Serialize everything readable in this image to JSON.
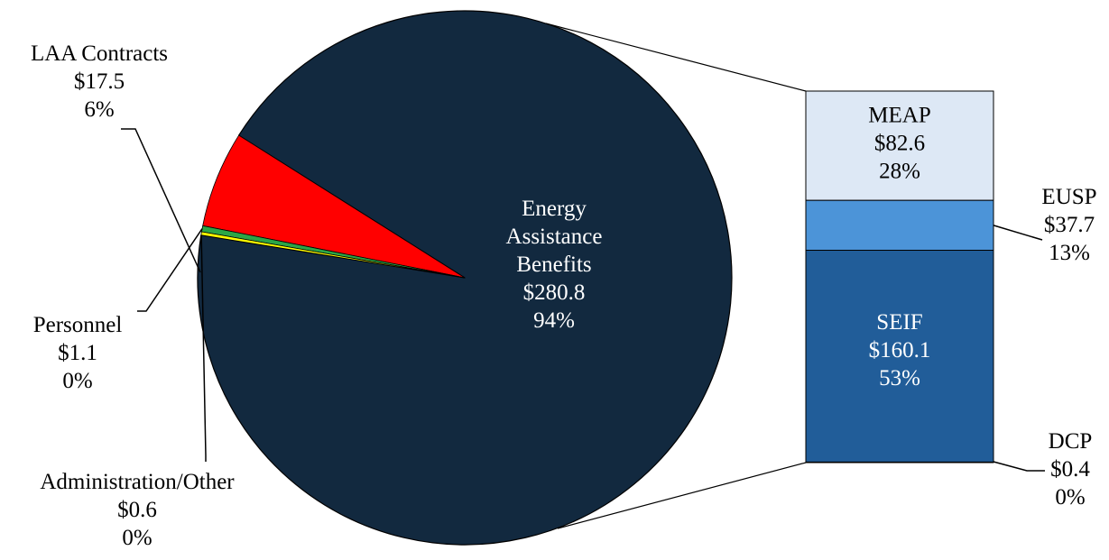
{
  "chart_data": {
    "type": "pie",
    "slices": [
      {
        "label": "Energy Assistance Benefits",
        "value": 280.8,
        "value_text": "$280.8",
        "pct_text": "94%",
        "color": "#12293f"
      },
      {
        "label": "LAA Contracts",
        "value": 17.5,
        "value_text": "$17.5",
        "pct_text": "6%",
        "color": "#ff0000"
      },
      {
        "label": "Personnel",
        "value": 1.1,
        "value_text": "$1.1",
        "pct_text": "0%",
        "color": "#2ca646"
      },
      {
        "label": "Administration/Other",
        "value": 0.6,
        "value_text": "$0.6",
        "pct_text": "0%",
        "color": "#ffff00"
      }
    ],
    "breakdown_of": "Energy Assistance Benefits",
    "breakdown": [
      {
        "label": "MEAP",
        "value": 82.6,
        "value_text": "$82.6",
        "pct_text": "28%",
        "color": "#dde8f5"
      },
      {
        "label": "EUSP",
        "value": 37.7,
        "value_text": "$37.7",
        "pct_text": "13%",
        "color": "#4c94d8"
      },
      {
        "label": "SEIF",
        "value": 160.1,
        "value_text": "$160.1",
        "pct_text": "53%",
        "color": "#215d99"
      },
      {
        "label": "DCP",
        "value": 0.4,
        "value_text": "$0.4",
        "pct_text": "0%",
        "color": "#1a3f6e"
      }
    ]
  }
}
